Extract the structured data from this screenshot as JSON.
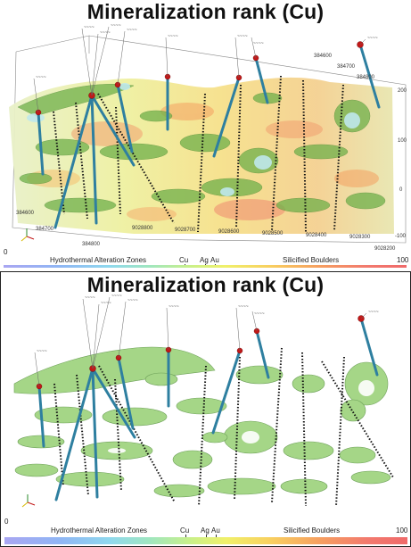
{
  "panels": [
    {
      "title": "Mineralization rank (Cu)",
      "legend": {
        "min": "0",
        "max": "100",
        "labels": [
          "Hydrothermal Alteration Zones",
          "Cu",
          "Ag",
          "Au",
          "Silicified Boulders"
        ]
      }
    },
    {
      "title": "Mineralization rank (Cu)",
      "legend": {
        "min": "0",
        "max": "100",
        "labels": [
          "Hydrothermal Alteration Zones",
          "Cu",
          "Ag",
          "Au",
          "Silicified Boulders"
        ]
      }
    }
  ],
  "axes": {
    "top_ticks": [
      "384600",
      "384700",
      "384800"
    ],
    "depth_ticks": [
      "200",
      "100",
      "0",
      "-100"
    ],
    "bottom_ticks": [
      "9028800",
      "9028700",
      "9028600",
      "9028500",
      "9028400",
      "9028300",
      "9028200"
    ],
    "left_ticks": [
      "384600",
      "384700",
      "384800"
    ]
  }
}
